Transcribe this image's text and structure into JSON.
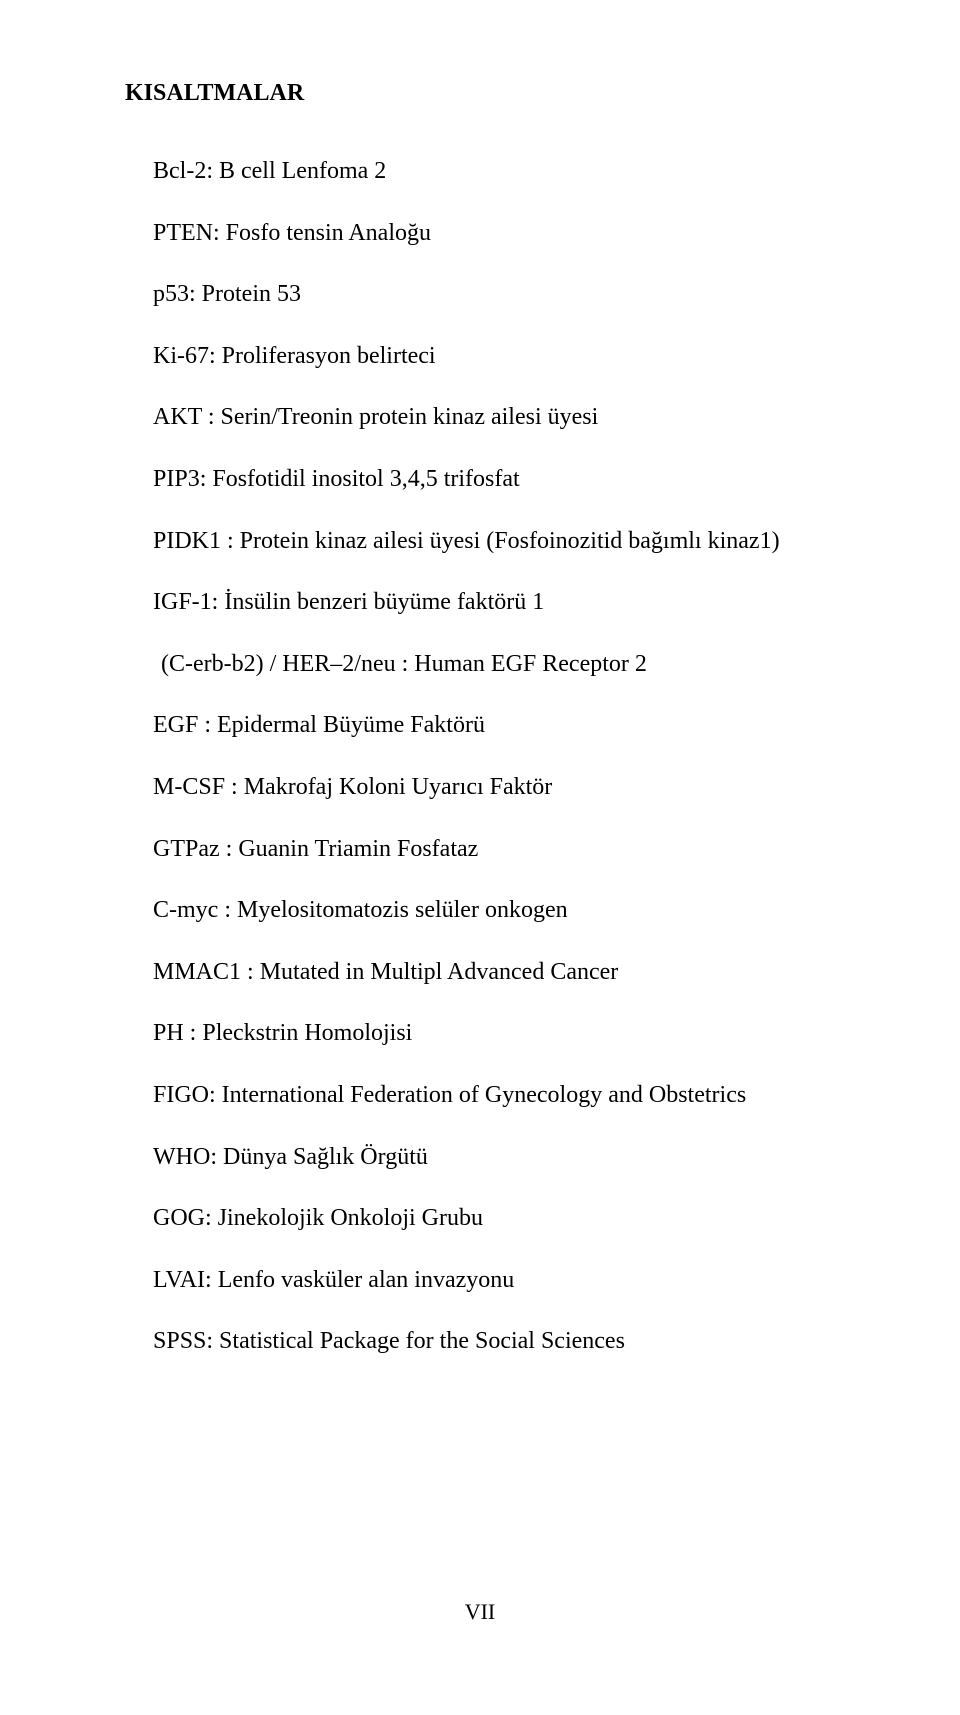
{
  "heading": "KISALTMALAR",
  "items": [
    "Bcl-2: B cell Lenfoma 2",
    "PTEN: Fosfo tensin Analoğu",
    "p53: Protein 53",
    "Ki-67: Proliferasyon belirteci",
    "AKT : Serin/Treonin protein kinaz ailesi üyesi",
    "PIP3: Fosfotidil inositol 3,4,5 trifosfat",
    "PIDK1 : Protein kinaz ailesi üyesi (Fosfoinozitid bağımlı kinaz1)",
    "IGF-1: İnsülin benzeri büyüme faktörü 1",
    " (C-erb-b2) / HER–2/neu : Human EGF Receptor 2",
    "EGF : Epidermal Büyüme Faktörü",
    "M-CSF : Makrofaj Koloni Uyarıcı Faktör",
    "GTPaz : Guanin Triamin Fosfataz",
    "C-myc : Myelositomatozis selüler  onkogen",
    "MMAC1 : Mutated in Multipl Advanced Cancer",
    "PH : Pleckstrin Homolojisi",
    "FIGO: International Federation of Gynecology and Obstetrics",
    "WHO: Dünya Sağlık Örgütü",
    "GOG: Jinekolojik Onkoloji Grubu",
    "LVAI: Lenfo vasküler alan invazyonu",
    "SPSS: Statistical Package for the Social Sciences"
  ],
  "page_number": "VII"
}
